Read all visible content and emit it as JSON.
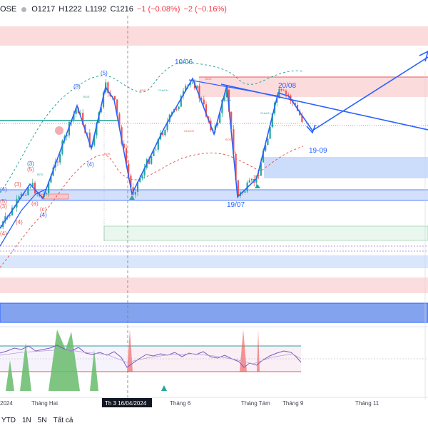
{
  "header": {
    "symbol": "OSE",
    "open": "O1217",
    "high": "H1222",
    "low": "L1192",
    "close": "C1216",
    "change": "−1 (−0.08%)",
    "change2": "−2 (−0.16%)"
  },
  "bottom_bar": {
    "items": [
      "YTD",
      "1N",
      "5N",
      "Tất cả"
    ]
  },
  "chart_data": {
    "type": "line",
    "x_labels": [
      "2024",
      "Tháng Hai",
      "Th 3 16/04/2024",
      "Tháng 6",
      "Tháng Tám",
      "Tháng 9",
      "Tháng 11"
    ],
    "annotations": [
      "10/06",
      "20/08",
      "19/07",
      "19-09"
    ],
    "wave_labels": [
      "(5)",
      "(5)",
      "(3)",
      "(5)",
      "(3)",
      "(4)",
      "(4)",
      "(a)",
      "(c)",
      "(4)",
      "(5)",
      "(3)",
      "(4)",
      "(4)"
    ],
    "structure_labels": [
      "BOS",
      "BOS",
      "CHoCH",
      "CHoCH",
      "CHoCH",
      "BOS",
      "CHoCH",
      "BOS",
      "BOS",
      "BOS"
    ],
    "colors": {
      "up": "#26a69a",
      "down": "#ef5350",
      "projection": "#2962ff",
      "zone_red": "#f8c9cc",
      "zone_blue": "#b9cdfa",
      "zone_green": "#e5f5ea",
      "rsi_line": "#7e57c2",
      "rsi_upper": "#26a69a",
      "rsi_lower": "#ef5350"
    }
  }
}
